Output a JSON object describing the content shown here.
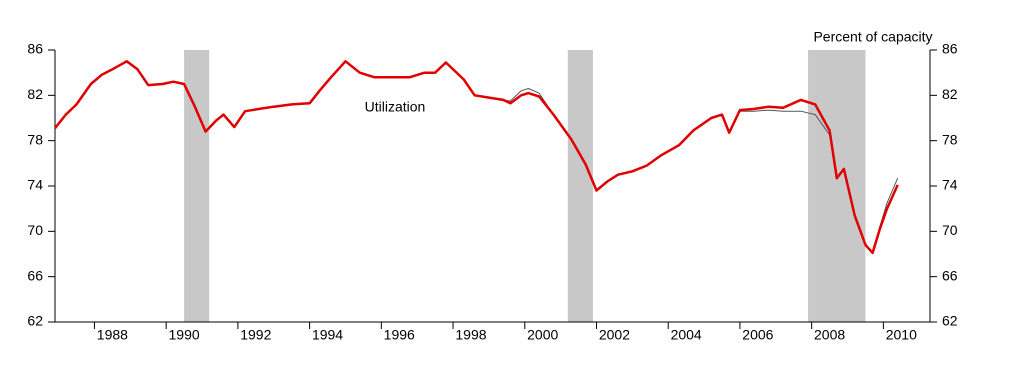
{
  "chart_data": {
    "type": "line",
    "annotations": [
      "Percent of capacity",
      "Utilization"
    ],
    "x": [
      1986.9,
      1987.2,
      1987.5,
      1987.9,
      1988.2,
      1988.5,
      1988.9,
      1989.2,
      1989.5,
      1989.9,
      1990.2,
      1990.5,
      1990.8,
      1991.1,
      1991.4,
      1991.6,
      1991.9,
      1992.2,
      1992.6,
      1993.0,
      1993.5,
      1994.0,
      1994.3,
      1994.6,
      1995.0,
      1995.4,
      1995.8,
      1996.3,
      1996.8,
      1997.2,
      1997.5,
      1997.8,
      1998.3,
      1998.6,
      1999.0,
      1999.4,
      1999.6,
      1999.9,
      2000.1,
      2000.4,
      2000.8,
      2001.3,
      2001.7,
      2002.0,
      2002.3,
      2002.6,
      2003.0,
      2003.4,
      2003.8,
      2004.3,
      2004.7,
      2005.2,
      2005.5,
      2005.7,
      2006.0,
      2006.4,
      2006.8,
      2007.2,
      2007.7,
      2008.1,
      2008.5,
      2008.7,
      2008.9,
      2009.2,
      2009.5,
      2009.7,
      2009.9,
      2010.1,
      2010.4
    ],
    "series": [
      {
        "color": "#555555",
        "width": 1,
        "values": [
          79.1,
          80.3,
          81.2,
          83.0,
          83.8,
          84.3,
          85.0,
          84.3,
          82.9,
          83.0,
          83.2,
          83.0,
          81.0,
          78.8,
          79.8,
          80.3,
          79.2,
          80.6,
          80.8,
          81.0,
          81.2,
          81.3,
          82.5,
          83.6,
          85.0,
          84.0,
          83.6,
          83.6,
          83.6,
          84.0,
          84.0,
          84.9,
          83.4,
          82.0,
          81.8,
          81.6,
          81.5,
          82.4,
          82.6,
          82.2,
          80.3,
          78.1,
          75.9,
          73.6,
          74.4,
          75.0,
          75.3,
          75.8,
          76.7,
          77.6,
          78.9,
          80.0,
          80.3,
          78.7,
          80.6,
          80.6,
          80.7,
          80.6,
          80.6,
          80.3,
          78.5,
          74.6,
          75.5,
          71.4,
          68.8,
          68.2,
          70.4,
          72.5,
          74.7
        ]
      },
      {
        "color": "#e00000",
        "width": 2.5,
        "values": [
          79.1,
          80.3,
          81.2,
          83.0,
          83.8,
          84.3,
          85.0,
          84.3,
          82.9,
          83.0,
          83.2,
          83.0,
          81.0,
          78.8,
          79.8,
          80.3,
          79.2,
          80.6,
          80.8,
          81.0,
          81.2,
          81.3,
          82.5,
          83.6,
          85.0,
          84.0,
          83.6,
          83.6,
          83.6,
          84.0,
          84.0,
          84.9,
          83.4,
          82.0,
          81.8,
          81.6,
          81.3,
          82.0,
          82.2,
          81.9,
          80.3,
          78.1,
          75.9,
          73.6,
          74.4,
          75.0,
          75.3,
          75.8,
          76.7,
          77.6,
          78.9,
          80.0,
          80.3,
          78.7,
          80.7,
          80.8,
          81.0,
          80.9,
          81.6,
          81.2,
          78.9,
          74.7,
          75.5,
          71.4,
          68.8,
          68.1,
          70.2,
          72.0,
          74.1
        ]
      }
    ],
    "shaded_regions": [
      [
        1990.5,
        1991.2
      ],
      [
        2001.2,
        2001.9
      ],
      [
        2007.9,
        2009.5
      ]
    ],
    "shade_color": "#c8c8c8",
    "xlim": [
      1986.9,
      2011.3
    ],
    "xticks": [
      1988,
      1990,
      1992,
      1994,
      1996,
      1998,
      2000,
      2002,
      2004,
      2006,
      2008,
      2010
    ],
    "ylim": [
      62,
      86
    ],
    "yticks": [
      62,
      66,
      70,
      74,
      78,
      82,
      86
    ]
  }
}
